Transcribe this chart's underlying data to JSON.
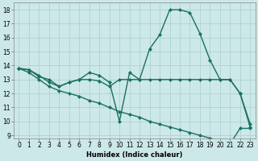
{
  "line1_x": [
    0,
    1,
    2,
    3,
    4,
    5,
    6,
    7,
    8,
    9,
    10,
    11,
    12,
    13,
    14,
    15,
    16,
    17,
    18,
    19,
    20,
    21,
    22,
    23
  ],
  "line1_y": [
    13.8,
    13.7,
    13.3,
    12.8,
    12.5,
    12.8,
    13.0,
    13.5,
    13.3,
    12.8,
    10.0,
    13.5,
    13.0,
    15.2,
    16.2,
    18.0,
    18.0,
    17.8,
    16.3,
    14.4,
    13.0,
    13.0,
    12.0,
    9.8
  ],
  "line2_x": [
    0,
    1,
    2,
    3,
    4,
    5,
    6,
    7,
    8,
    9,
    10,
    11,
    12,
    13,
    14,
    15,
    16,
    17,
    18,
    19,
    20,
    21,
    22,
    23
  ],
  "line2_y": [
    13.8,
    13.7,
    13.2,
    13.0,
    12.5,
    12.8,
    13.0,
    13.0,
    12.9,
    12.5,
    13.0,
    13.0,
    13.0,
    13.0,
    13.0,
    13.0,
    13.0,
    13.0,
    13.0,
    13.0,
    13.0,
    13.0,
    12.0,
    9.6
  ],
  "line3_x": [
    0,
    1,
    2,
    3,
    4,
    5,
    6,
    7,
    8,
    9,
    10,
    11,
    12,
    13,
    14,
    15,
    16,
    17,
    18,
    19,
    20,
    21,
    22,
    23
  ],
  "line3_y": [
    13.8,
    13.5,
    13.0,
    12.5,
    12.2,
    12.0,
    11.8,
    11.5,
    11.3,
    11.0,
    10.7,
    10.5,
    10.3,
    10.0,
    9.8,
    9.6,
    9.4,
    9.2,
    9.0,
    8.8,
    8.6,
    8.4,
    9.5,
    9.5
  ],
  "line_color": "#1a7060",
  "background_color": "#cce8e8",
  "grid_color": "#aacece",
  "xlabel": "Humidex (Indice chaleur)",
  "ylim_min": 8.8,
  "ylim_max": 18.5,
  "xlim_min": -0.5,
  "xlim_max": 23.5,
  "yticks": [
    9,
    10,
    11,
    12,
    13,
    14,
    15,
    16,
    17,
    18
  ],
  "xticks": [
    0,
    1,
    2,
    3,
    4,
    5,
    6,
    7,
    8,
    9,
    10,
    11,
    12,
    13,
    14,
    15,
    16,
    17,
    18,
    19,
    20,
    21,
    22,
    23
  ],
  "markersize": 2.5,
  "linewidth": 1.0,
  "tick_fontsize": 5.5,
  "xlabel_fontsize": 6.0
}
